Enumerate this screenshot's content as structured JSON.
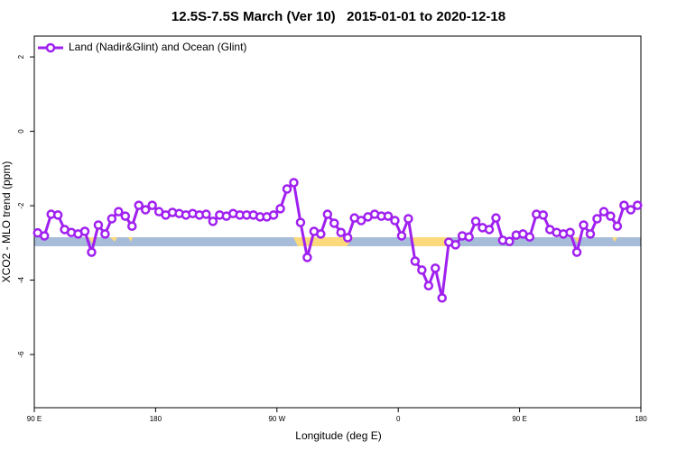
{
  "chart_data": {
    "type": "line",
    "title": "12.5S-7.5S March (Ver 10)   2015-01-01 to 2020-12-18",
    "xlabel": "Longitude (deg E)",
    "ylabel": "XCO2 - MLO trend (ppm)",
    "xlim": [
      90,
      540
    ],
    "ylim": [
      -7.43,
      2.56
    ],
    "xticks": [
      {
        "value": 90,
        "label": "90 E"
      },
      180,
      {
        "value": 270,
        "label": "90 W"
      },
      {
        "value": 360,
        "label": "0"
      },
      {
        "value": 450,
        "label": "90 E"
      },
      {
        "value": 540,
        "label": "180"
      }
    ],
    "yticks": [
      2,
      0,
      -2,
      -4,
      -6
    ],
    "legend": "top-left",
    "x": [
      92.5,
      97.5,
      102.5,
      107.5,
      112.5,
      117.5,
      122.5,
      127.5,
      132.5,
      137.5,
      142.5,
      147.5,
      152.5,
      157.5,
      162.5,
      167.5,
      172.5,
      177.5,
      182.5,
      187.5,
      192.5,
      197.5,
      202.5,
      207.5,
      212.5,
      217.5,
      222.5,
      227.5,
      232.5,
      237.5,
      242.5,
      247.5,
      252.5,
      257.5,
      262.5,
      267.5,
      272.5,
      277.5,
      282.5,
      287.5,
      292.5,
      297.5,
      302.5,
      307.5,
      312.5,
      317.5,
      322.5,
      327.5,
      332.5,
      337.5,
      342.5,
      347.5,
      352.5,
      357.5,
      362.5,
      367.5,
      372.5,
      377.5,
      382.5,
      387.5,
      392.5,
      397.5,
      402.5,
      407.5,
      412.5,
      417.5,
      422.5,
      427.5,
      432.5,
      437.5,
      442.5,
      447.5,
      452.5,
      457.5,
      462.5,
      467.5,
      472.5,
      477.5,
      482.5,
      487.5,
      492.5,
      497.5,
      502.5,
      507.5,
      512.5,
      517.5,
      522.5,
      527.5,
      532.5,
      537.5
    ],
    "series": [
      {
        "name": "Land (Nadir&Glint) and Ocean (Glint)",
        "color": "#a020f0",
        "values": [
          -2.73,
          -2.81,
          -2.23,
          -2.25,
          -2.64,
          -2.72,
          -2.76,
          -2.69,
          -3.25,
          -2.52,
          -2.76,
          -2.35,
          -2.16,
          -2.28,
          -2.55,
          -1.99,
          -2.11,
          -1.99,
          -2.16,
          -2.25,
          -2.18,
          -2.21,
          -2.25,
          -2.21,
          -2.25,
          -2.23,
          -2.42,
          -2.25,
          -2.28,
          -2.21,
          -2.25,
          -2.25,
          -2.25,
          -2.3,
          -2.3,
          -2.25,
          -2.08,
          -1.55,
          -1.38,
          -2.45,
          -3.39,
          -2.69,
          -2.76,
          -2.23,
          -2.47,
          -2.72,
          -2.86,
          -2.33,
          -2.4,
          -2.3,
          -2.23,
          -2.28,
          -2.28,
          -2.4,
          -2.81,
          -2.35,
          -3.49,
          -3.73,
          -4.15,
          -3.68,
          -4.48,
          -2.98,
          -3.05,
          -2.81,
          -2.84,
          -2.42,
          -2.59,
          -2.64,
          -2.33,
          -2.93,
          -2.96,
          -2.79,
          -2.76,
          -2.84,
          -2.23,
          -2.25,
          -2.64,
          -2.72,
          -2.76,
          -2.72,
          -3.25,
          -2.52,
          -2.76,
          -2.35,
          -2.16,
          -2.28,
          -2.55,
          -1.99,
          -2.11,
          -1.99
        ]
      }
    ]
  }
}
